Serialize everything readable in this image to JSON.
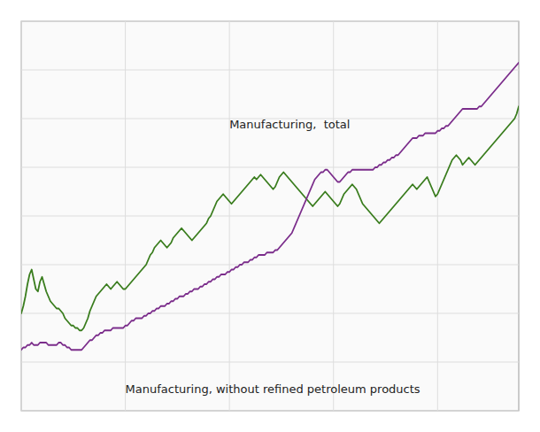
{
  "chart_data": {
    "type": "line",
    "series": [
      {
        "color": "#3a7d1e",
        "values": [
          100,
          103,
          107,
          112,
          116,
          118,
          114,
          110,
          109,
          113,
          115,
          112,
          109,
          107,
          105,
          104,
          103,
          102,
          102,
          101,
          100,
          98,
          97,
          96,
          95,
          95,
          94,
          94,
          93,
          93,
          94,
          96,
          98,
          101,
          103,
          105,
          107,
          108,
          109,
          110,
          111,
          112,
          111,
          110,
          111,
          112,
          113,
          112,
          111,
          110,
          110,
          111,
          112,
          113,
          114,
          115,
          116,
          117,
          118,
          119,
          120,
          122,
          124,
          125,
          127,
          128,
          129,
          130,
          129,
          128,
          127,
          128,
          129,
          131,
          132,
          133,
          134,
          135,
          134,
          133,
          132,
          131,
          130,
          131,
          132,
          133,
          134,
          135,
          136,
          137,
          139,
          140,
          142,
          144,
          146,
          147,
          148,
          149,
          148,
          147,
          146,
          145,
          146,
          147,
          148,
          149,
          150,
          151,
          152,
          153,
          154,
          155,
          156,
          155,
          156,
          157,
          156,
          155,
          154,
          153,
          152,
          151,
          152,
          154,
          156,
          157,
          158,
          157,
          156,
          155,
          154,
          153,
          152,
          151,
          150,
          149,
          148,
          147,
          146,
          145,
          144,
          145,
          146,
          147,
          148,
          149,
          150,
          149,
          148,
          147,
          146,
          145,
          144,
          145,
          147,
          149,
          150,
          151,
          152,
          153,
          152,
          151,
          149,
          147,
          145,
          144,
          143,
          142,
          141,
          140,
          139,
          138,
          137,
          138,
          139,
          140,
          141,
          142,
          143,
          144,
          145,
          146,
          147,
          148,
          149,
          150,
          151,
          152,
          153,
          152,
          151,
          152,
          153,
          154,
          155,
          156,
          154,
          152,
          150,
          148,
          149,
          151,
          153,
          155,
          157,
          159,
          161,
          163,
          164,
          165,
          164,
          163,
          161,
          162,
          163,
          164,
          163,
          162,
          161,
          162,
          163,
          164,
          165,
          166,
          167,
          168,
          169,
          170,
          171,
          172,
          173,
          174,
          175,
          176,
          177,
          178,
          179,
          180,
          182,
          185
        ]
      },
      {
        "color": "#7b2d8b",
        "values": [
          85,
          86,
          86,
          87,
          87,
          88,
          87,
          87,
          87,
          88,
          88,
          88,
          88,
          87,
          87,
          87,
          87,
          87,
          88,
          88,
          87,
          87,
          86,
          86,
          85,
          85,
          85,
          85,
          85,
          85,
          86,
          87,
          88,
          89,
          89,
          90,
          91,
          91,
          92,
          92,
          93,
          93,
          93,
          93,
          94,
          94,
          94,
          94,
          94,
          94,
          95,
          95,
          96,
          97,
          97,
          98,
          98,
          98,
          98,
          99,
          99,
          100,
          100,
          101,
          101,
          102,
          102,
          103,
          103,
          103,
          104,
          104,
          105,
          105,
          106,
          106,
          107,
          107,
          107,
          108,
          108,
          109,
          109,
          110,
          110,
          110,
          111,
          111,
          112,
          112,
          113,
          113,
          114,
          114,
          115,
          115,
          116,
          116,
          116,
          117,
          117,
          118,
          118,
          119,
          119,
          120,
          120,
          121,
          121,
          121,
          122,
          122,
          123,
          123,
          124,
          124,
          124,
          124,
          125,
          125,
          125,
          125,
          126,
          126,
          127,
          128,
          129,
          130,
          131,
          132,
          133,
          135,
          137,
          139,
          141,
          143,
          145,
          147,
          149,
          151,
          153,
          155,
          156,
          157,
          158,
          158,
          159,
          159,
          158,
          157,
          156,
          155,
          154,
          154,
          155,
          156,
          157,
          158,
          158,
          159,
          159,
          159,
          159,
          159,
          159,
          159,
          159,
          159,
          159,
          159,
          160,
          160,
          161,
          161,
          162,
          162,
          163,
          163,
          164,
          164,
          165,
          165,
          166,
          167,
          168,
          169,
          170,
          171,
          172,
          172,
          172,
          173,
          173,
          173,
          174,
          174,
          174,
          174,
          174,
          174,
          175,
          175,
          176,
          176,
          177,
          177,
          178,
          179,
          180,
          181,
          182,
          183,
          184,
          184,
          184,
          184,
          184,
          184,
          184,
          184,
          185,
          185,
          186,
          187,
          188,
          189,
          190,
          191,
          192,
          193,
          194,
          195,
          196,
          197,
          198,
          199,
          200,
          201,
          202,
          203
        ]
      }
    ],
    "annotations": [
      {
        "text": "Manufacturing,  total",
        "x": 100,
        "y": 175
      },
      {
        "text": "Manufacturing, without refined petroleum products",
        "x": 50,
        "y": 72
      }
    ],
    "xlim": [
      0,
      239
    ],
    "xticks": [
      0,
      50,
      100,
      150,
      200
    ],
    "ylim": [
      60,
      220
    ],
    "yticks": [
      60,
      80,
      100,
      120,
      140,
      160,
      180,
      200,
      220
    ],
    "grid": true,
    "tick_labels": false
  }
}
